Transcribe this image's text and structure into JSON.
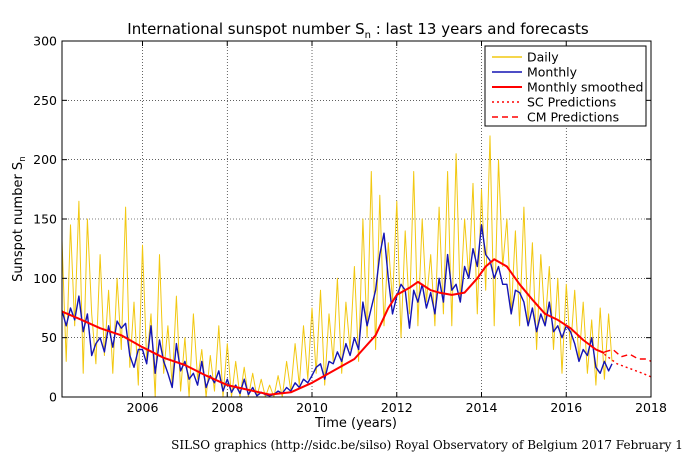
{
  "chart_data": {
    "type": "line",
    "title": "International sunspot number S",
    "title_subscript": "n",
    "title_suffix": ": last 13 years and forecasts",
    "xlabel": "Time (years)",
    "ylabel": "Sunspot number S",
    "ylabel_subscript": "n",
    "xlim": [
      2004.1,
      2018.0
    ],
    "ylim": [
      0,
      300
    ],
    "x_ticks": [
      2006,
      2008,
      2010,
      2012,
      2014,
      2016,
      2018
    ],
    "x_tick_labels": [
      "2006",
      "2008",
      "2010",
      "2012",
      "2014",
      "2016",
      "2018"
    ],
    "y_ticks": [
      0,
      50,
      100,
      150,
      200,
      250,
      300
    ],
    "y_tick_labels": [
      "0",
      "50",
      "100",
      "150",
      "200",
      "250",
      "300"
    ],
    "grid": true,
    "legend_position": "top-right",
    "series": [
      {
        "name": "Daily",
        "color": "#f2c811",
        "style": "solid",
        "x": [
          2004.1,
          2004.2,
          2004.3,
          2004.4,
          2004.5,
          2004.6,
          2004.7,
          2004.8,
          2004.9,
          2005.0,
          2005.1,
          2005.2,
          2005.3,
          2005.4,
          2005.5,
          2005.6,
          2005.7,
          2005.8,
          2005.9,
          2006.0,
          2006.1,
          2006.2,
          2006.3,
          2006.4,
          2006.5,
          2006.6,
          2006.7,
          2006.8,
          2006.9,
          2007.0,
          2007.1,
          2007.2,
          2007.3,
          2007.4,
          2007.5,
          2007.6,
          2007.7,
          2007.8,
          2007.9,
          2008.0,
          2008.1,
          2008.2,
          2008.3,
          2008.4,
          2008.5,
          2008.6,
          2008.7,
          2008.8,
          2008.9,
          2009.0,
          2009.1,
          2009.2,
          2009.3,
          2009.4,
          2009.5,
          2009.6,
          2009.7,
          2009.8,
          2009.9,
          2010.0,
          2010.1,
          2010.2,
          2010.3,
          2010.4,
          2010.5,
          2010.6,
          2010.7,
          2010.8,
          2010.9,
          2011.0,
          2011.1,
          2011.2,
          2011.3,
          2011.4,
          2011.5,
          2011.6,
          2011.7,
          2011.8,
          2011.9,
          2012.0,
          2012.1,
          2012.2,
          2012.3,
          2012.4,
          2012.5,
          2012.6,
          2012.7,
          2012.8,
          2012.9,
          2013.0,
          2013.1,
          2013.2,
          2013.3,
          2013.4,
          2013.5,
          2013.6,
          2013.7,
          2013.8,
          2013.9,
          2014.0,
          2014.1,
          2014.2,
          2014.3,
          2014.4,
          2014.5,
          2014.6,
          2014.7,
          2014.8,
          2014.9,
          2015.0,
          2015.1,
          2015.2,
          2015.3,
          2015.4,
          2015.5,
          2015.6,
          2015.7,
          2015.8,
          2015.9,
          2016.0,
          2016.1,
          2016.2,
          2016.3,
          2016.4,
          2016.5,
          2016.6,
          2016.7,
          2016.8,
          2016.9,
          2017.0,
          2017.08
        ],
        "y": [
          132,
          30,
          145,
          60,
          165,
          20,
          150,
          70,
          28,
          120,
          35,
          90,
          20,
          100,
          40,
          160,
          25,
          80,
          10,
          128,
          30,
          70,
          0,
          120,
          20,
          60,
          10,
          85,
          5,
          50,
          0,
          70,
          15,
          40,
          0,
          35,
          5,
          60,
          0,
          45,
          0,
          30,
          0,
          25,
          0,
          20,
          0,
          15,
          0,
          10,
          0,
          18,
          0,
          30,
          5,
          45,
          10,
          60,
          15,
          75,
          20,
          90,
          10,
          70,
          30,
          100,
          20,
          80,
          40,
          110,
          30,
          150,
          50,
          190,
          40,
          170,
          60,
          130,
          80,
          165,
          50,
          140,
          70,
          190,
          60,
          150,
          80,
          120,
          60,
          160,
          70,
          190,
          60,
          205,
          80,
          150,
          100,
          180,
          70,
          175,
          90,
          220,
          60,
          200,
          110,
          150,
          70,
          140,
          60,
          160,
          60,
          130,
          40,
          120,
          60,
          110,
          40,
          100,
          20,
          95,
          40,
          90,
          30,
          80,
          20,
          65,
          10,
          75,
          15,
          70,
          30
        ]
      },
      {
        "name": "Monthly",
        "color": "#1414b4",
        "style": "solid",
        "x": [
          2004.1,
          2004.2,
          2004.3,
          2004.4,
          2004.5,
          2004.6,
          2004.7,
          2004.8,
          2004.9,
          2005.0,
          2005.1,
          2005.2,
          2005.3,
          2005.4,
          2005.5,
          2005.6,
          2005.7,
          2005.8,
          2005.9,
          2006.0,
          2006.1,
          2006.2,
          2006.3,
          2006.4,
          2006.5,
          2006.6,
          2006.7,
          2006.8,
          2006.9,
          2007.0,
          2007.1,
          2007.2,
          2007.3,
          2007.4,
          2007.5,
          2007.6,
          2007.7,
          2007.8,
          2007.9,
          2008.0,
          2008.1,
          2008.2,
          2008.3,
          2008.4,
          2008.5,
          2008.6,
          2008.7,
          2008.8,
          2008.9,
          2009.0,
          2009.1,
          2009.2,
          2009.3,
          2009.4,
          2009.5,
          2009.6,
          2009.7,
          2009.8,
          2009.9,
          2010.0,
          2010.1,
          2010.2,
          2010.3,
          2010.4,
          2010.5,
          2010.6,
          2010.7,
          2010.8,
          2010.9,
          2011.0,
          2011.1,
          2011.2,
          2011.3,
          2011.4,
          2011.5,
          2011.6,
          2011.7,
          2011.8,
          2011.9,
          2012.0,
          2012.1,
          2012.2,
          2012.3,
          2012.4,
          2012.5,
          2012.6,
          2012.7,
          2012.8,
          2012.9,
          2013.0,
          2013.1,
          2013.2,
          2013.3,
          2013.4,
          2013.5,
          2013.6,
          2013.7,
          2013.8,
          2013.9,
          2014.0,
          2014.1,
          2014.2,
          2014.3,
          2014.4,
          2014.5,
          2014.6,
          2014.7,
          2014.8,
          2014.9,
          2015.0,
          2015.1,
          2015.2,
          2015.3,
          2015.4,
          2015.5,
          2015.6,
          2015.7,
          2015.8,
          2015.9,
          2016.0,
          2016.1,
          2016.2,
          2016.3,
          2016.4,
          2016.5,
          2016.6,
          2016.7,
          2016.8,
          2016.9,
          2017.0,
          2017.08
        ],
        "y": [
          73,
          60,
          75,
          65,
          85,
          55,
          70,
          35,
          45,
          50,
          38,
          60,
          42,
          64,
          58,
          62,
          35,
          25,
          40,
          40,
          28,
          60,
          20,
          48,
          30,
          20,
          8,
          45,
          22,
          30,
          15,
          20,
          10,
          30,
          8,
          18,
          12,
          22,
          5,
          15,
          4,
          10,
          3,
          15,
          2,
          8,
          1,
          4,
          2,
          1,
          2,
          5,
          3,
          8,
          5,
          12,
          8,
          15,
          12,
          18,
          25,
          28,
          15,
          30,
          28,
          38,
          30,
          45,
          35,
          50,
          40,
          80,
          60,
          75,
          90,
          120,
          138,
          100,
          70,
          85,
          95,
          90,
          58,
          90,
          80,
          95,
          75,
          88,
          70,
          100,
          80,
          120,
          90,
          95,
          80,
          110,
          100,
          125,
          110,
          145,
          120,
          115,
          100,
          110,
          95,
          95,
          70,
          90,
          88,
          80,
          60,
          75,
          55,
          70,
          60,
          80,
          55,
          60,
          50,
          60,
          55,
          45,
          30,
          40,
          35,
          50,
          25,
          20,
          30,
          22,
          28
        ]
      },
      {
        "name": "Monthly smoothed",
        "color": "#ff0000",
        "style": "solid",
        "x": [
          2004.1,
          2004.5,
          2005.0,
          2005.5,
          2006.0,
          2006.5,
          2007.0,
          2007.5,
          2008.0,
          2008.5,
          2009.0,
          2009.5,
          2010.0,
          2010.5,
          2011.0,
          2011.5,
          2011.8,
          2012.0,
          2012.3,
          2012.5,
          2012.8,
          2013.0,
          2013.3,
          2013.6,
          2013.9,
          2014.1,
          2014.3,
          2014.6,
          2014.9,
          2015.2,
          2015.5,
          2015.8,
          2016.1,
          2016.4,
          2016.7,
          2016.9
        ],
        "y": [
          72,
          66,
          58,
          52,
          42,
          33,
          27,
          18,
          10,
          6,
          2,
          4,
          12,
          22,
          32,
          52,
          75,
          86,
          92,
          97,
          90,
          88,
          86,
          88,
          100,
          110,
          116,
          110,
          95,
          82,
          70,
          65,
          58,
          48,
          40,
          37
        ]
      },
      {
        "name": "SC Predictions",
        "color": "#ff0000",
        "style": "dotted",
        "x": [
          2016.9,
          2017.2,
          2017.5,
          2017.8,
          2018.0
        ],
        "y": [
          36,
          28,
          24,
          20,
          17
        ]
      },
      {
        "name": "CM Predictions",
        "color": "#ff0000",
        "style": "dashed",
        "x": [
          2016.9,
          2017.1,
          2017.3,
          2017.5,
          2017.7,
          2017.9,
          2018.0
        ],
        "y": [
          38,
          40,
          34,
          36,
          32,
          32,
          30
        ]
      }
    ]
  },
  "footer": {
    "text": "SILSO graphics (http://sidc.be/silso)  Royal Observatory of Belgium  2017 February 1"
  }
}
